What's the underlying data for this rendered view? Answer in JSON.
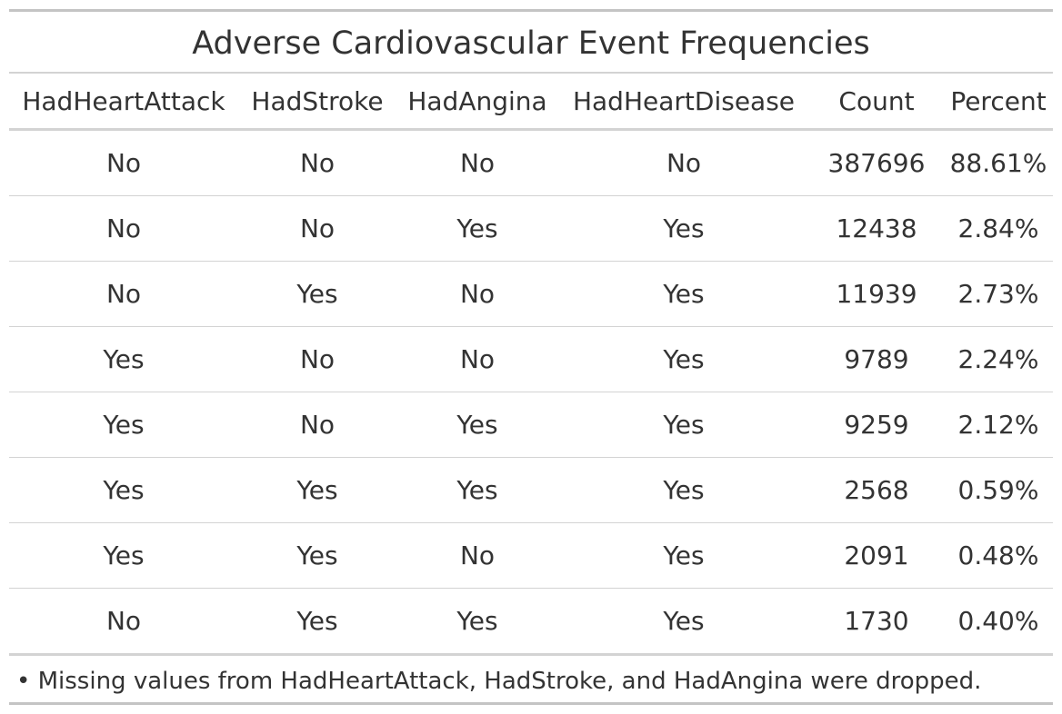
{
  "title": "Adverse Cardiovascular Event Frequencies",
  "columns": [
    "HadHeartAttack",
    "HadStroke",
    "HadAngina",
    "HadHeartDisease",
    "Count",
    "Percent"
  ],
  "rows": [
    [
      "No",
      "No",
      "No",
      "No",
      "387696",
      "88.61%"
    ],
    [
      "No",
      "No",
      "Yes",
      "Yes",
      "12438",
      "2.84%"
    ],
    [
      "No",
      "Yes",
      "No",
      "Yes",
      "11939",
      "2.73%"
    ],
    [
      "Yes",
      "No",
      "No",
      "Yes",
      "9789",
      "2.24%"
    ],
    [
      "Yes",
      "No",
      "Yes",
      "Yes",
      "9259",
      "2.12%"
    ],
    [
      "Yes",
      "Yes",
      "Yes",
      "Yes",
      "2568",
      "0.59%"
    ],
    [
      "Yes",
      "Yes",
      "No",
      "Yes",
      "2091",
      "0.48%"
    ],
    [
      "No",
      "Yes",
      "Yes",
      "Yes",
      "1730",
      "0.40%"
    ]
  ],
  "footnote": "• Missing values from HadHeartAttack, HadStroke, and HadAngina were dropped.",
  "chart_data": {
    "type": "table",
    "title": "Adverse Cardiovascular Event Frequencies",
    "columns": [
      "HadHeartAttack",
      "HadStroke",
      "HadAngina",
      "HadHeartDisease",
      "Count",
      "Percent"
    ],
    "rows": [
      [
        "No",
        "No",
        "No",
        "No",
        387696,
        "88.61%"
      ],
      [
        "No",
        "No",
        "Yes",
        "Yes",
        12438,
        "2.84%"
      ],
      [
        "No",
        "Yes",
        "No",
        "Yes",
        11939,
        "2.73%"
      ],
      [
        "Yes",
        "No",
        "No",
        "Yes",
        9789,
        "2.24%"
      ],
      [
        "Yes",
        "No",
        "Yes",
        "Yes",
        9259,
        "2.12%"
      ],
      [
        "Yes",
        "Yes",
        "Yes",
        "Yes",
        2568,
        "0.59%"
      ],
      [
        "Yes",
        "Yes",
        "No",
        "Yes",
        2091,
        "0.48%"
      ],
      [
        "No",
        "Yes",
        "Yes",
        "Yes",
        1730,
        "0.40%"
      ]
    ]
  }
}
